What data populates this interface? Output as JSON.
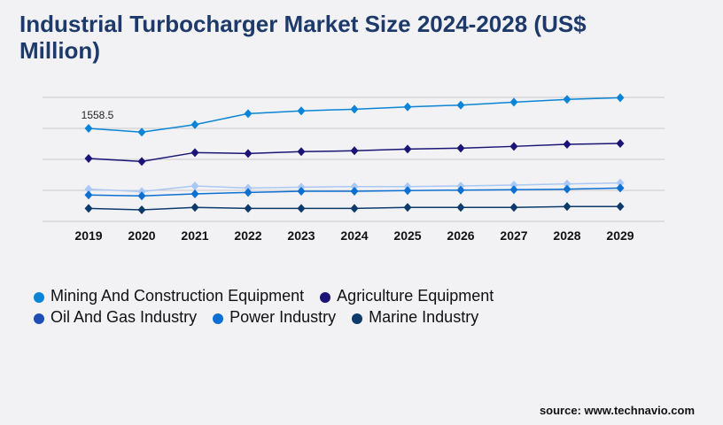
{
  "title": "Industrial Turbocharger Market Size 2024-2028 (US$ Million)",
  "source": "source: www.technavio.com",
  "chart_data": {
    "type": "line",
    "title": "Industrial Turbocharger Market Size 2024-2028 (US$ Million)",
    "x": [
      "2019",
      "2020",
      "2021",
      "2022",
      "2023",
      "2024",
      "2025",
      "2026",
      "2027",
      "2028",
      "2029"
    ],
    "ylim": [
      0,
      2078
    ],
    "grid": true,
    "legend_position": "bottom",
    "annotations": [
      {
        "series": 0,
        "x": "2019",
        "text": "1558.5"
      }
    ],
    "series": [
      {
        "name": "Mining And Construction Equipment",
        "color": "#0a84d6",
        "values": [
          1558.5,
          1495,
          1622,
          1806,
          1851,
          1880,
          1919,
          1949,
          1999,
          2044,
          2073
        ]
      },
      {
        "name": "Agriculture Equipment",
        "color": "#1b1477",
        "values": [
          1054,
          1004,
          1153,
          1138,
          1168,
          1183,
          1212,
          1227,
          1257,
          1291,
          1306
        ]
      },
      {
        "name": "Oil And Gas Industry",
        "color": "#a9c8f5",
        "legend_color": "#1e4db5",
        "values": [
          539,
          500,
          594,
          559,
          574,
          583,
          583,
          594,
          608,
          628,
          643
        ]
      },
      {
        "name": "Power Industry",
        "color": "#0c6fd2",
        "values": [
          441,
          426,
          460,
          485,
          505,
          505,
          515,
          524,
          530,
          539,
          559
        ]
      },
      {
        "name": "Marine Industry",
        "color": "#0b3a6b",
        "values": [
          218,
          193,
          233,
          218,
          218,
          218,
          233,
          233,
          233,
          248,
          248
        ]
      }
    ]
  }
}
